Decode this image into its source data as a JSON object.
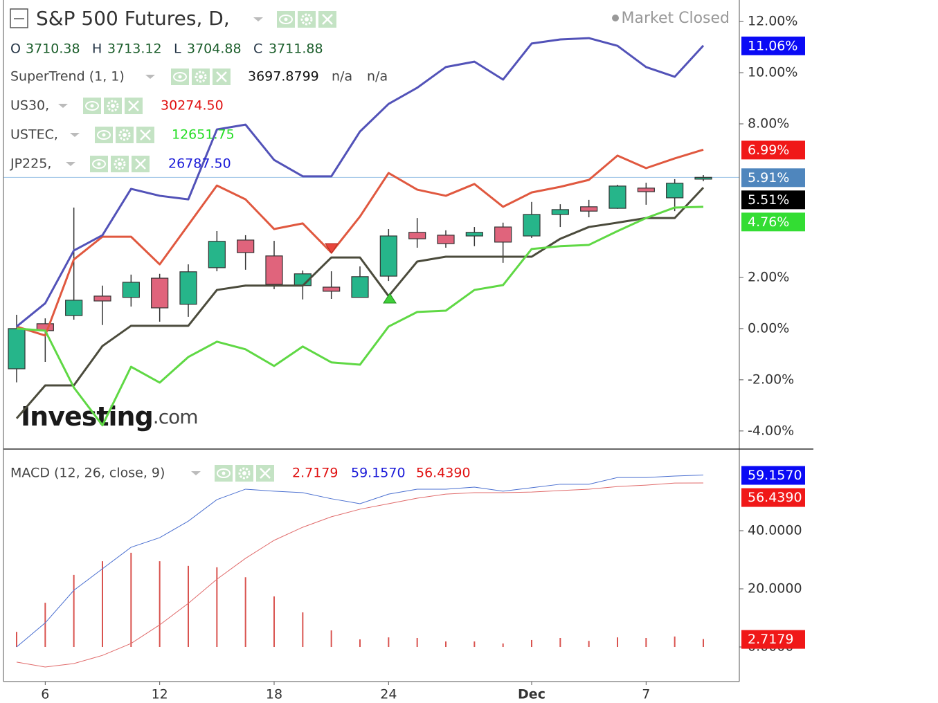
{
  "chart_data": [
    {
      "type": "candlestick",
      "title": "S&P 500 Futures, D,",
      "status": "Market Closed",
      "ohlc": [
        {
          "key": "O",
          "value": "3710.38"
        },
        {
          "key": "H",
          "value": "3713.12"
        },
        {
          "key": "L",
          "value": "3704.88"
        },
        {
          "key": "C",
          "value": "3711.88"
        }
      ],
      "categories": [
        null,
        "6",
        null,
        null,
        null,
        "12",
        null,
        null,
        null,
        "18",
        null,
        null,
        null,
        "24",
        null,
        null,
        null,
        null,
        "Dec",
        null,
        null,
        null,
        "7",
        null,
        null
      ],
      "open": [
        -1.57,
        0.19,
        0.51,
        1.27,
        1.22,
        1.97,
        0.95,
        2.38,
        3.46,
        2.84,
        1.68,
        1.62,
        1.22,
        2.05,
        3.76,
        3.65,
        3.62,
        3.97,
        3.62,
        4.46,
        4.76,
        4.7,
        5.49,
        5.11,
        5.84
      ],
      "high": [
        0.54,
        0.4,
        4.73,
        1.68,
        2.11,
        2.14,
        2.51,
        3.81,
        3.65,
        3.43,
        2.27,
        2.24,
        2.43,
        3.89,
        4.32,
        3.84,
        3.97,
        4.14,
        4.95,
        4.86,
        5.03,
        5.62,
        5.7,
        5.84,
        6.0
      ],
      "low": [
        -2.1,
        -1.3,
        0.35,
        0.14,
        0.86,
        0.27,
        0.46,
        2.24,
        2.3,
        1.54,
        1.14,
        1.16,
        1.22,
        1.86,
        3.16,
        3.16,
        3.22,
        2.57,
        3.54,
        3.97,
        4.35,
        4.68,
        4.84,
        4.59,
        5.76
      ],
      "close": [
        0,
        -0.08,
        1.11,
        1.08,
        1.81,
        0.81,
        2.22,
        3.41,
        2.97,
        1.73,
        2.14,
        1.46,
        2.03,
        3.62,
        3.51,
        3.32,
        3.76,
        3.38,
        4.46,
        4.65,
        4.59,
        5.57,
        5.35,
        5.68,
        5.91
      ],
      "up_color": "#26b58a",
      "down_color": "#e0647c",
      "price_label": "5.91%",
      "price_label_color": "#4f86bd",
      "price_line_color": "#9cc3e6",
      "series": [
        {
          "name": "SuperTrend (1, 1)",
          "legend_values": [
            "3697.8799",
            "n/a",
            "n/a"
          ],
          "legend_color": "#111111",
          "color": "#4b4b3c",
          "label_color": "#000000",
          "price_label": "5.51%",
          "values": [
            -3.51,
            -2.22,
            -2.22,
            -0.68,
            0.11,
            0.11,
            0.11,
            1.51,
            1.68,
            1.68,
            1.68,
            2.78,
            2.78,
            1.27,
            2.62,
            2.81,
            2.81,
            2.81,
            2.81,
            3.51,
            3.97,
            4.14,
            4.32,
            4.32,
            5.51
          ]
        },
        {
          "name": "US30,",
          "legend_values": [
            "30274.50"
          ],
          "legend_color": "#e01010",
          "color": "#e0583f",
          "label_color": "#f01818",
          "price_label": "6.99%",
          "values": [
            0.08,
            -0.27,
            2.7,
            3.59,
            3.59,
            2.51,
            4.05,
            5.59,
            5.05,
            3.89,
            4.11,
            2.97,
            4.38,
            6.08,
            5.43,
            5.19,
            5.65,
            4.76,
            5.32,
            5.54,
            5.81,
            6.76,
            6.27,
            6.65,
            6.99
          ]
        },
        {
          "name": "USTEC,",
          "legend_values": [
            "12651.75"
          ],
          "legend_color": "#22dd22",
          "color": "#5fd844",
          "label_color": "#33dd33",
          "price_label": "4.76%",
          "values": [
            0,
            -0.08,
            -2.3,
            -3.78,
            -1.49,
            -2.11,
            -1.11,
            -0.51,
            -0.81,
            -1.46,
            -0.7,
            -1.32,
            -1.41,
            0.08,
            0.65,
            0.7,
            1.51,
            1.7,
            3.11,
            3.22,
            3.27,
            3.81,
            4.32,
            4.73,
            4.76
          ]
        },
        {
          "name": "JP225,",
          "legend_values": [
            "26787.50"
          ],
          "legend_color": "#1a1ad8",
          "color": "#5252b8",
          "label_color": "#0a0af5",
          "price_label": "11.06%",
          "values": [
            0.08,
            0.99,
            3.05,
            3.65,
            5.46,
            5.19,
            5.05,
            7.78,
            7.97,
            6.59,
            5.95,
            5.95,
            7.7,
            8.78,
            9.41,
            10.22,
            10.43,
            9.73,
            11.14,
            11.3,
            11.35,
            11.05,
            10.22,
            9.84,
            11.06
          ]
        }
      ],
      "ylim": [
        -4.68,
        12.84
      ],
      "yticks": [
        {
          "value": -4,
          "label": "-4.00%"
        },
        {
          "value": -2,
          "label": "-2.00%"
        },
        {
          "value": 0,
          "label": "0.00%"
        },
        {
          "value": 2,
          "label": "2.00%"
        },
        {
          "value": 8,
          "label": "8.00%"
        },
        {
          "value": 10,
          "label": "10.00%"
        },
        {
          "value": 12,
          "label": "12.00%"
        }
      ],
      "grid": false,
      "watermark": [
        "Investing",
        ".com"
      ]
    },
    {
      "type": "macd",
      "title": "MACD (12, 26, close, 9)",
      "series": [
        {
          "name": "Histogram",
          "color": "#d9534f",
          "label_color": "#f01818",
          "legend_color": "#e01010",
          "legend_value": "2.7179",
          "price_label": "2.7179",
          "values": [
            5.2,
            15.2,
            24.8,
            29.5,
            32.4,
            29.5,
            27.9,
            27.4,
            24.0,
            17.4,
            11.9,
            5.7,
            2.6,
            3.3,
            3.1,
            1.9,
            1.9,
            1.2,
            2.4,
            3.1,
            2.1,
            3.3,
            3.1,
            3.6,
            2.7179
          ]
        },
        {
          "name": "MACD",
          "color": "#4a6fd0",
          "label_color": "#0a0af5",
          "legend_color": "#1a1ad8",
          "legend_value": "59.1570",
          "price_label": "59.1570",
          "values": [
            0,
            8.3,
            19.5,
            26.9,
            34.3,
            37.6,
            43.3,
            50.7,
            54.3,
            53.6,
            53.1,
            51.0,
            49.3,
            52.6,
            54.3,
            54.3,
            55.0,
            53.6,
            54.8,
            56.0,
            56.0,
            58.3,
            58.3,
            58.8,
            59.157
          ]
        },
        {
          "name": "Signal",
          "color": "#e06a6a",
          "label_color": "#f01818",
          "legend_color": "#e01010",
          "legend_value": "56.4390",
          "price_label": "56.4390",
          "values": [
            -5.2,
            -6.9,
            -5.7,
            -2.9,
            1.2,
            7.6,
            15.0,
            23.3,
            30.5,
            36.7,
            41.2,
            44.8,
            47.4,
            49.3,
            51.2,
            52.6,
            53.1,
            53.1,
            53.3,
            53.8,
            54.3,
            55.2,
            55.7,
            56.4,
            56.439
          ]
        }
      ],
      "ylim": [
        -11.9,
        67.86
      ],
      "yticks": [
        {
          "value": 0,
          "label": "0.0000"
        },
        {
          "value": 20,
          "label": "20.0000"
        },
        {
          "value": 40,
          "label": "40.0000"
        }
      ],
      "grid": false
    }
  ]
}
